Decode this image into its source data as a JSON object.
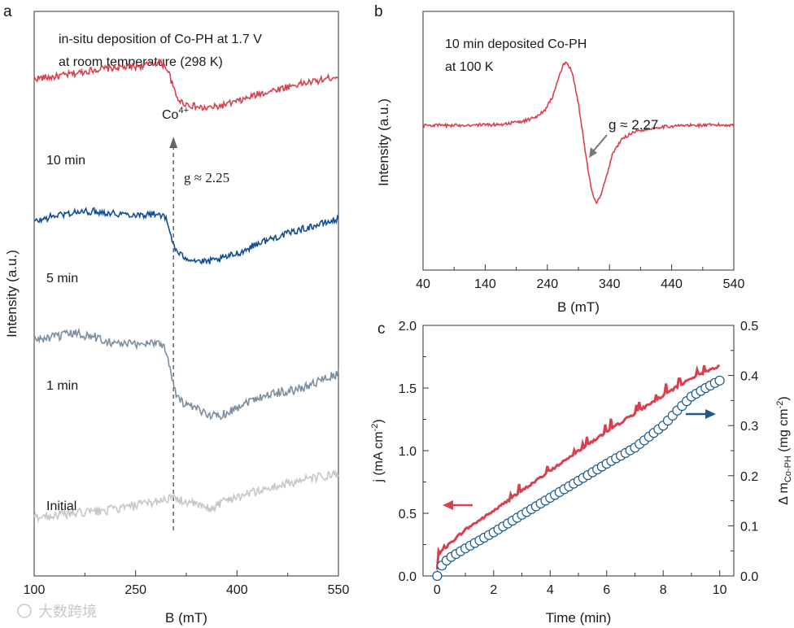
{
  "chart_data": [
    {
      "id": "a",
      "type": "line",
      "panel_label": "a",
      "title_lines": [
        "in-situ deposition of Co-PH at 1.7 V",
        "at room temperature (298 K)"
      ],
      "xlabel": "B (mT)",
      "ylabel": "Intensity (a.u.)",
      "xlim": [
        100,
        550
      ],
      "xticks": [
        100,
        250,
        400,
        550
      ],
      "minor_xticks": [
        175,
        325,
        475
      ],
      "ylim": [
        0,
        1
      ],
      "y_ticks": "none",
      "annotation_species": "Co",
      "annotation_species_sup": "4+",
      "annotation_g": "g ≈ 2.25",
      "marker_x": 306,
      "series": [
        {
          "name": "10 min",
          "color": "#d9404e",
          "x": [
            100,
            130,
            160,
            190,
            220,
            250,
            270,
            285,
            295,
            300,
            305,
            310,
            318,
            330,
            350,
            370,
            390,
            410,
            430,
            460,
            490,
            520,
            550
          ],
          "y": [
            0.881,
            0.884,
            0.89,
            0.897,
            0.9,
            0.902,
            0.906,
            0.91,
            0.902,
            0.888,
            0.868,
            0.85,
            0.839,
            0.834,
            0.828,
            0.831,
            0.837,
            0.844,
            0.853,
            0.862,
            0.871,
            0.877,
            0.886
          ]
        },
        {
          "name": "5 min",
          "color": "#144e93",
          "x": [
            100,
            130,
            160,
            190,
            220,
            250,
            270,
            285,
            295,
            300,
            305,
            310,
            318,
            330,
            350,
            370,
            390,
            410,
            430,
            460,
            490,
            520,
            550
          ],
          "y": [
            0.627,
            0.638,
            0.644,
            0.646,
            0.642,
            0.64,
            0.64,
            0.642,
            0.632,
            0.612,
            0.592,
            0.575,
            0.567,
            0.562,
            0.556,
            0.559,
            0.567,
            0.576,
            0.589,
            0.601,
            0.612,
            0.622,
            0.632
          ]
        },
        {
          "name": "1 min",
          "color": "#7b8fa0",
          "x": [
            100,
            130,
            160,
            190,
            220,
            250,
            270,
            285,
            295,
            300,
            305,
            310,
            318,
            330,
            350,
            370,
            390,
            410,
            430,
            460,
            490,
            520,
            550
          ],
          "y": [
            0.418,
            0.423,
            0.43,
            0.423,
            0.412,
            0.41,
            0.414,
            0.414,
            0.4,
            0.375,
            0.348,
            0.322,
            0.308,
            0.3,
            0.29,
            0.283,
            0.292,
            0.306,
            0.316,
            0.325,
            0.33,
            0.345,
            0.358
          ]
        },
        {
          "name": "Initial",
          "color": "#c7c7c7",
          "x": [
            100,
            150,
            200,
            250,
            280,
            300,
            320,
            340,
            360,
            380,
            400,
            430,
            460,
            490,
            520,
            550
          ],
          "y": [
            0.104,
            0.11,
            0.115,
            0.124,
            0.132,
            0.138,
            0.133,
            0.126,
            0.118,
            0.133,
            0.141,
            0.15,
            0.159,
            0.168,
            0.175,
            0.18
          ]
        }
      ]
    },
    {
      "id": "b",
      "type": "line",
      "panel_label": "b",
      "title_lines": [
        "10 min deposited Co-PH",
        "at 100 K"
      ],
      "xlabel": "B (mT)",
      "ylabel": "Intensity (a.u.)",
      "xlim": [
        40,
        540
      ],
      "xticks": [
        40,
        140,
        240,
        340,
        440,
        540
      ],
      "minor_xticks": [
        90,
        190,
        290,
        390,
        490
      ],
      "ylim": [
        0,
        1
      ],
      "y_ticks": "none",
      "annotation_g": "g ≈ 2.27",
      "series": [
        {
          "name": "10 min deposited Co-PH",
          "color": "#d9404e",
          "x": [
            40,
            80,
            120,
            160,
            200,
            220,
            235,
            248,
            258,
            265,
            270,
            276,
            282,
            290,
            298,
            305,
            312,
            318,
            325,
            335,
            345,
            360,
            380,
            420,
            460,
            500,
            540
          ],
          "y": [
            0.56,
            0.559,
            0.561,
            0.562,
            0.574,
            0.59,
            0.616,
            0.666,
            0.742,
            0.79,
            0.799,
            0.786,
            0.742,
            0.645,
            0.509,
            0.396,
            0.297,
            0.261,
            0.279,
            0.36,
            0.451,
            0.506,
            0.536,
            0.553,
            0.559,
            0.56,
            0.561
          ]
        }
      ]
    },
    {
      "id": "c",
      "type": "line+scatter",
      "panel_label": "c",
      "xlabel": "Time (min)",
      "ylabel": "j (mA cm",
      "ylabel_sup": "-2",
      "ylabel_suffix": ")",
      "y2label": "Δ m",
      "y2label_sub": "Co-PH",
      "y2label_mid": " (mg cm",
      "y2label_sup": "-2",
      "y2label_suffix": ")",
      "xlim": [
        -0.5,
        10.5
      ],
      "ylim": [
        0,
        2.0
      ],
      "y2lim": [
        0,
        0.5
      ],
      "xticks": [
        0,
        2,
        4,
        6,
        8,
        10
      ],
      "minor_xticks": [
        1,
        3,
        5,
        7,
        9
      ],
      "yticks": [
        0.0,
        0.5,
        1.0,
        1.5,
        2.0
      ],
      "minor_yticks": [
        0.25,
        0.75,
        1.25,
        1.75
      ],
      "y2ticks": [
        0.0,
        0.1,
        0.2,
        0.3,
        0.4,
        0.5
      ],
      "minor_y2ticks": [
        0.05,
        0.15,
        0.25,
        0.35,
        0.45
      ],
      "ytick_labels": [
        "0.0",
        "0.5",
        "1.0",
        "1.5",
        "2.0"
      ],
      "y2tick_labels": [
        "0.0",
        "0.1",
        "0.2",
        "0.3",
        "0.4",
        "0.5"
      ],
      "xtick_labels": [
        "0",
        "2",
        "4",
        "6",
        "8",
        "10"
      ],
      "series": [
        {
          "name": "j (current density)",
          "axis": "left",
          "color": "#d9404e",
          "x": [
            0.0,
            0.03,
            0.1,
            0.5,
            1,
            2,
            3,
            4,
            5,
            6,
            7,
            8,
            9,
            9.5,
            10.0
          ],
          "y": [
            0.05,
            0.12,
            0.18,
            0.27,
            0.37,
            0.52,
            0.68,
            0.84,
            1.0,
            1.15,
            1.3,
            1.44,
            1.58,
            1.63,
            1.68
          ]
        },
        {
          "name": "Δ m Co-PH",
          "axis": "right",
          "color": "#1b5a8c",
          "marker": "open-circle",
          "x": [
            0.0,
            0.2,
            0.5,
            1,
            2,
            3,
            4,
            5,
            6,
            7,
            8,
            8.5,
            9,
            9.5,
            10.0
          ],
          "y": [
            0.0,
            0.025,
            0.038,
            0.055,
            0.087,
            0.122,
            0.156,
            0.19,
            0.224,
            0.256,
            0.3,
            0.33,
            0.358,
            0.375,
            0.39
          ]
        }
      ],
      "arrow_left_color": "#d9404e",
      "arrow_right_color": "#1b5a8c"
    }
  ],
  "watermark": "大数跨境"
}
